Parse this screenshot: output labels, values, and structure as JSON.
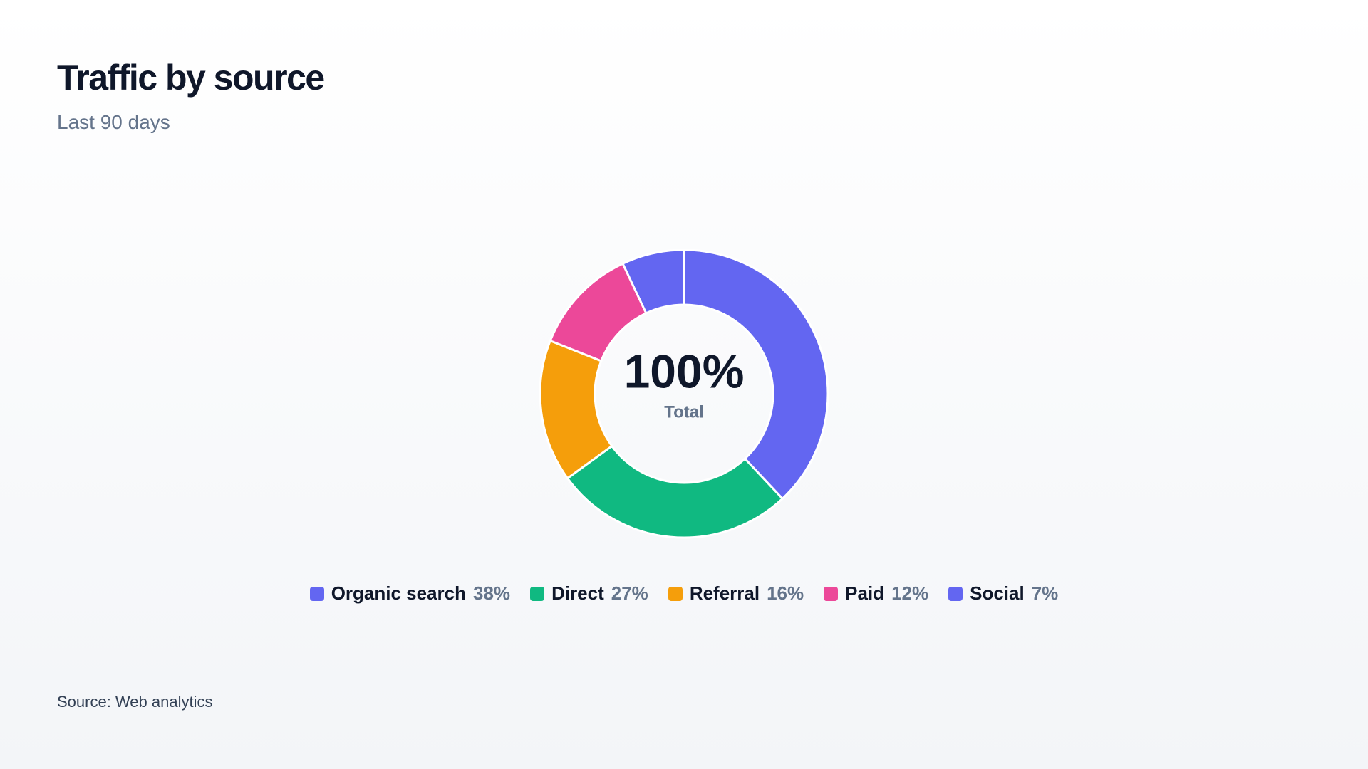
{
  "chart_data": {
    "type": "donut",
    "title": "Traffic by source",
    "subtitle": "Last 90 days",
    "categories": [
      "Organic search",
      "Direct",
      "Referral",
      "Paid",
      "Social"
    ],
    "values": [
      38,
      27,
      16,
      12,
      7
    ],
    "value_labels": [
      "38%",
      "27%",
      "16%",
      "12%",
      "7%"
    ],
    "colors": [
      "#6366f1",
      "#10b981",
      "#f59e0b",
      "#ec4899",
      "#6366f1"
    ],
    "center_label": "100%",
    "center_sublabel": "Total",
    "source": "Source: Web analytics"
  }
}
